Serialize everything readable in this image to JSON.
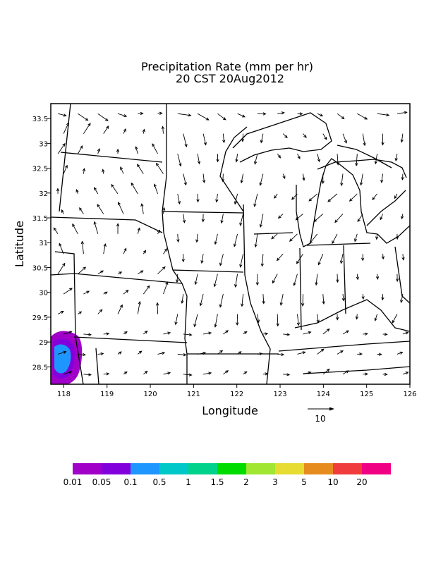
{
  "chart_data": {
    "type": "heatmap",
    "title": "Precipitation Rate (mm per hr)",
    "subtitle": "20 CST 20Aug2012",
    "xlabel": "Longitude",
    "ylabel": "Latitude",
    "xlim": [
      117.7,
      126.0
    ],
    "ylim": [
      28.15,
      33.8
    ],
    "x_ticks": [
      "118",
      "119",
      "120",
      "121",
      "122",
      "123",
      "124",
      "125",
      "126"
    ],
    "y_ticks": [
      "28.5",
      "29",
      "29.5",
      "30",
      "30.5",
      "31",
      "31.5",
      "32",
      "32.5",
      "33",
      "33.5"
    ],
    "vector_reference": {
      "label": "10",
      "magnitude": 10
    },
    "wind_field": {
      "rows": 14,
      "cols": 18
    },
    "precip_area": {
      "center_lon": 118.05,
      "center_lat": 28.8,
      "max_level": "0.1"
    },
    "colorbar": {
      "colors": [
        "#a000c8",
        "#8200dc",
        "#1e96ff",
        "#00c8c8",
        "#00d28c",
        "#00dc00",
        "#a0e632",
        "#e6dc32",
        "#e68c1e",
        "#f03c3c",
        "#f00082"
      ],
      "labels": [
        "0.01",
        "0.05",
        "0.1",
        "0.5",
        "1",
        "1.5",
        "2",
        "3",
        "5",
        "10",
        "20"
      ]
    }
  }
}
